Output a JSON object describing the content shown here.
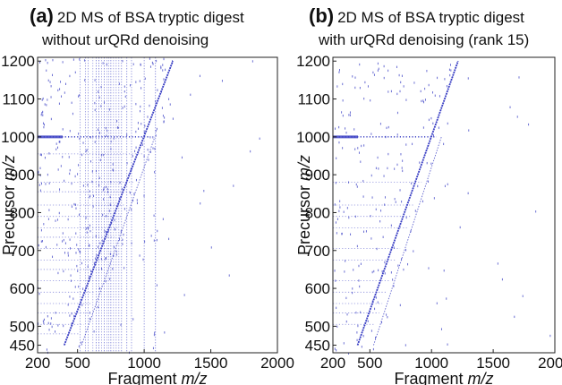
{
  "chart_data": [
    {
      "type": "scatter",
      "panel_letter": "(a)",
      "title": "2D MS of BSA tryptic digest",
      "subtitle": "without urQRd denoising",
      "xlabel_main": "Fragment ",
      "xlabel_unit": "m/z",
      "ylabel_main": "Precursor ",
      "ylabel_unit": "m/z",
      "xlim": [
        200,
        2000
      ],
      "ylim": [
        430,
        1210
      ],
      "x_ticks": [
        200,
        500,
        1000,
        1500,
        2000
      ],
      "y_ticks": [
        450,
        500,
        600,
        700,
        800,
        900,
        1000,
        1100,
        1200
      ],
      "point_color": "#3a3fc4",
      "features": {
        "diagonal_line": {
          "x": [
            400,
            1215
          ],
          "y": [
            450,
            1200
          ]
        },
        "fragment_diagonal": {
          "x": [
            530,
            1080
          ],
          "y": [
            450,
            1000
          ]
        },
        "horizontal_streaks_y": [
          1000,
          955,
          880,
          855,
          820,
          790,
          760,
          735,
          705,
          675,
          650,
          620,
          590,
          560,
          535,
          505,
          480
        ],
        "vertical_streaks_x": [
          520,
          560,
          580,
          615,
          640,
          660,
          680,
          700,
          720,
          735,
          750,
          770,
          790,
          810,
          830,
          870,
          905,
          1000,
          1085
        ]
      }
    },
    {
      "type": "scatter",
      "panel_letter": "(b)",
      "title": "2D MS of BSA tryptic digest",
      "subtitle": "with urQRd denoising (rank 15)",
      "xlabel_main": "Fragment ",
      "xlabel_unit": "m/z",
      "ylabel_main": "Precursor ",
      "ylabel_unit": "m/z",
      "xlim": [
        200,
        2000
      ],
      "ylim": [
        430,
        1210
      ],
      "x_ticks": [
        200,
        500,
        1000,
        1500,
        2000
      ],
      "y_ticks": [
        450,
        500,
        600,
        700,
        800,
        900,
        1000,
        1100,
        1200
      ],
      "point_color": "#3a3fc4",
      "features": {
        "diagonal_line": {
          "x": [
            400,
            1215
          ],
          "y": [
            450,
            1200
          ]
        },
        "fragment_diagonal": {
          "x": [
            530,
            1080
          ],
          "y": [
            450,
            1000
          ]
        },
        "horizontal_streaks_y": [
          1000,
          880,
          820,
          790,
          760,
          705,
          675,
          620,
          590,
          560,
          535,
          505
        ],
        "vertical_streaks_x": []
      }
    }
  ]
}
